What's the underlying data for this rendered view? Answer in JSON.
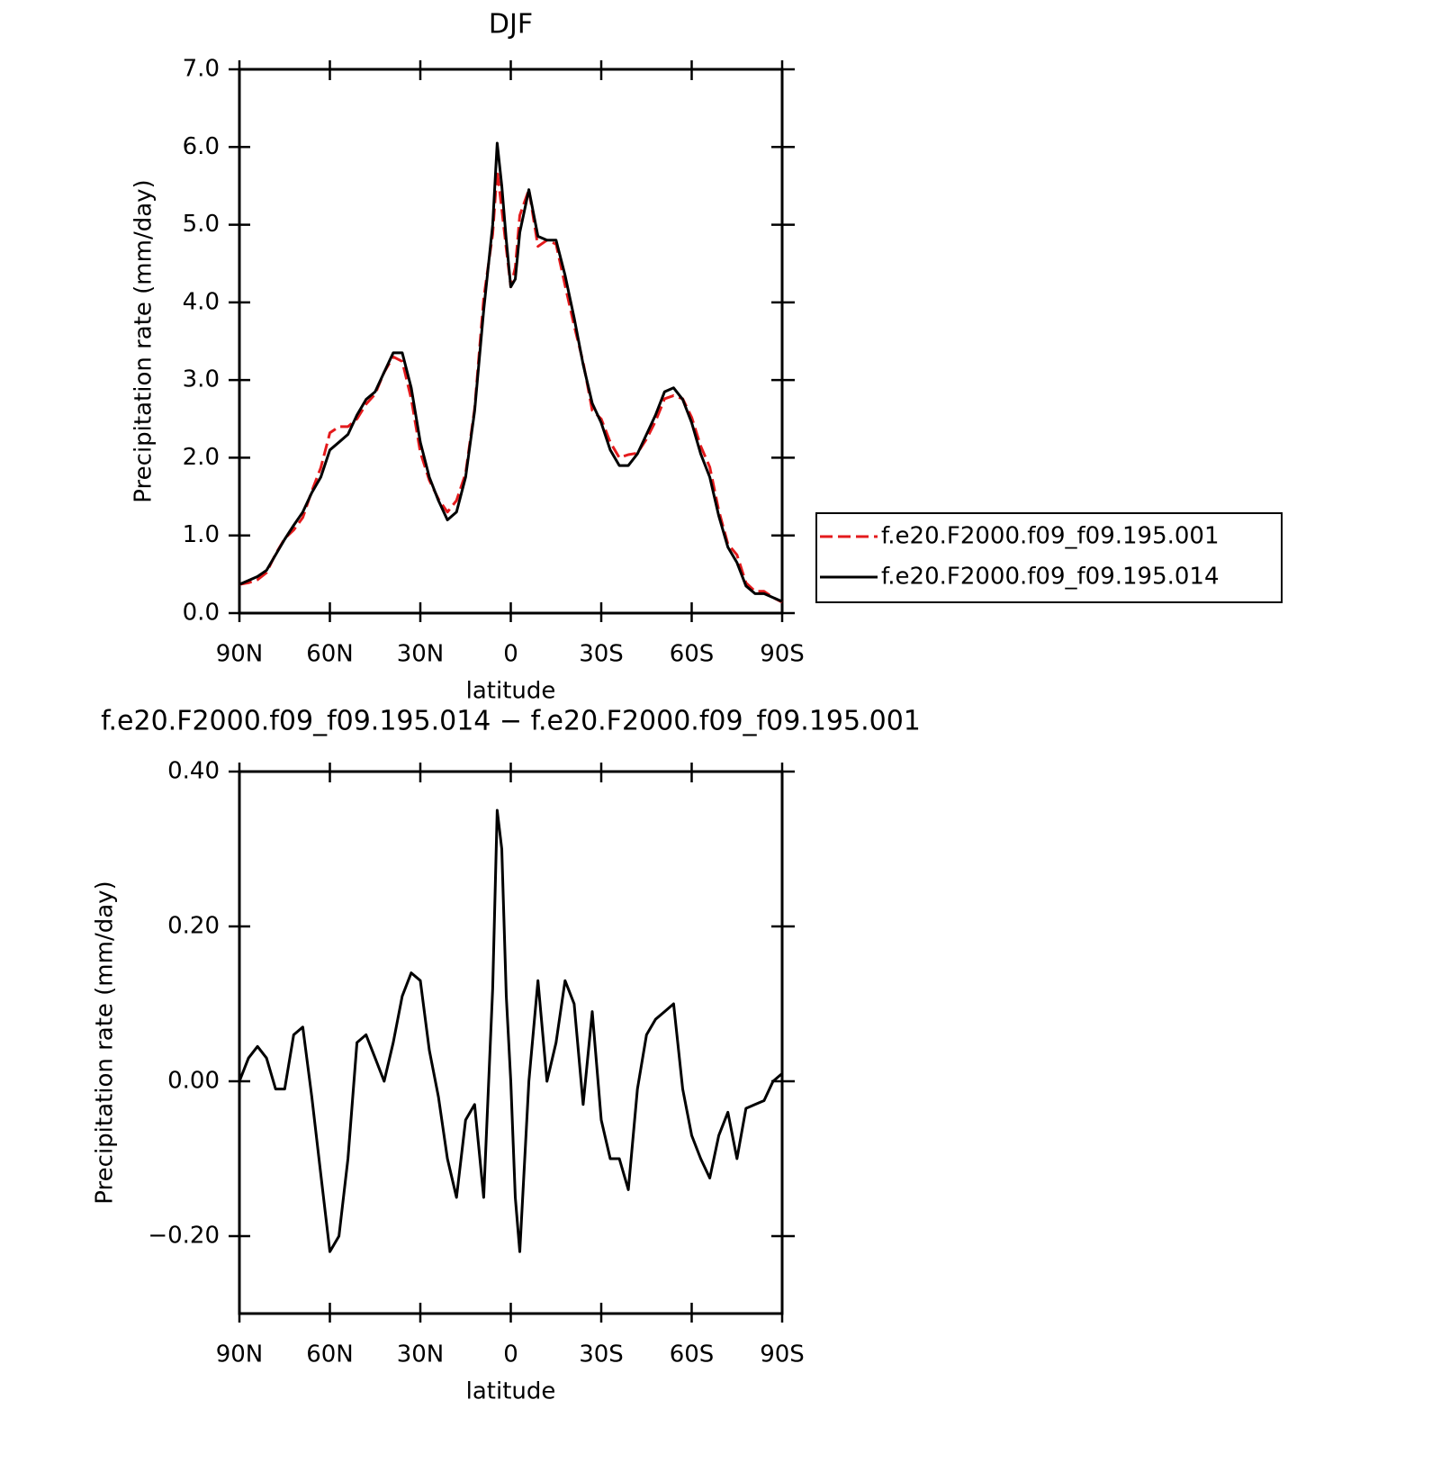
{
  "chart_data": [
    {
      "type": "line",
      "title": "DJF",
      "xlabel": "latitude",
      "ylabel": "Precipitation rate (mm/day)",
      "x": [
        90,
        87,
        84,
        81,
        78,
        75,
        72,
        69,
        66,
        63,
        60,
        57,
        54,
        51,
        48,
        45,
        42,
        39,
        36,
        33,
        30,
        27,
        24,
        21,
        18,
        15,
        12,
        9,
        6,
        4.5,
        3,
        1.5,
        0,
        -1.5,
        -3,
        -6,
        -9,
        -12,
        -15,
        -18,
        -21,
        -24,
        -27,
        -30,
        -33,
        -36,
        -39,
        -42,
        -45,
        -48,
        -51,
        -54,
        -57,
        -60,
        -63,
        -66,
        -69,
        -72,
        -75,
        -78,
        -81,
        -84,
        -87,
        -90
      ],
      "series": [
        {
          "name": "f.e20.F2000.f09_f09.195.001",
          "color": "#e41a1c",
          "dash": true,
          "values": [
            0.37,
            0.39,
            0.43,
            0.52,
            0.76,
            0.96,
            1.07,
            1.23,
            1.57,
            1.87,
            2.32,
            2.4,
            2.4,
            2.5,
            2.69,
            2.82,
            3.1,
            3.3,
            3.24,
            2.76,
            2.07,
            1.71,
            1.47,
            1.3,
            1.45,
            1.8,
            2.63,
            4.05,
            4.88,
            5.7,
            5.2,
            4.69,
            4.2,
            4.45,
            5.12,
            5.45,
            4.72,
            4.8,
            4.75,
            4.22,
            3.7,
            3.23,
            2.61,
            2.5,
            2.2,
            2.0,
            2.04,
            2.06,
            2.24,
            2.47,
            2.76,
            2.8,
            2.76,
            2.52,
            2.15,
            1.88,
            1.32,
            0.89,
            0.75,
            0.39,
            0.28,
            0.28,
            0.2,
            0.14
          ]
        },
        {
          "name": "f.e20.F2000.f09_f09.195.014",
          "color": "#000000",
          "dash": false,
          "values": [
            0.37,
            0.42,
            0.47,
            0.55,
            0.75,
            0.95,
            1.13,
            1.3,
            1.55,
            1.75,
            2.1,
            2.2,
            2.3,
            2.55,
            2.75,
            2.85,
            3.1,
            3.35,
            3.35,
            2.9,
            2.2,
            1.75,
            1.45,
            1.2,
            1.3,
            1.75,
            2.6,
            3.9,
            5.0,
            6.05,
            5.5,
            4.8,
            4.2,
            4.3,
            4.9,
            5.45,
            4.85,
            4.8,
            4.8,
            4.35,
            3.8,
            3.2,
            2.7,
            2.45,
            2.1,
            1.9,
            1.9,
            2.05,
            2.3,
            2.55,
            2.85,
            2.9,
            2.75,
            2.45,
            2.05,
            1.75,
            1.25,
            0.85,
            0.65,
            0.35,
            0.25,
            0.25,
            0.2,
            0.15
          ]
        }
      ],
      "xlim": [
        90,
        -90
      ],
      "xticks": [
        {
          "value": 90,
          "label": "90N"
        },
        {
          "value": 60,
          "label": "60N"
        },
        {
          "value": 30,
          "label": "30N"
        },
        0,
        {
          "value": -30,
          "label": "30S"
        },
        {
          "value": -60,
          "label": "60S"
        },
        {
          "value": -90,
          "label": "90S"
        }
      ],
      "ylim": [
        0,
        7
      ],
      "yticks": [
        {
          "value": 0,
          "label": "0.0"
        },
        {
          "value": 1,
          "label": "1.0"
        },
        {
          "value": 2,
          "label": "2.0"
        },
        {
          "value": 3,
          "label": "3.0"
        },
        {
          "value": 4,
          "label": "4.0"
        },
        {
          "value": 5,
          "label": "5.0"
        },
        {
          "value": 6,
          "label": "6.0"
        },
        {
          "value": 7,
          "label": "7.0"
        }
      ],
      "legend": "right"
    },
    {
      "type": "line",
      "title": "f.e20.F2000.f09_f09.195.014 − f.e20.F2000.f09_f09.195.001",
      "xlabel": "latitude",
      "ylabel": "Precipitation rate (mm/day)",
      "x": [
        90,
        87,
        84,
        81,
        78,
        75,
        72,
        69,
        66,
        63,
        60,
        57,
        54,
        51,
        48,
        45,
        42,
        39,
        36,
        33,
        30,
        27,
        24,
        21,
        18,
        15,
        12,
        9,
        6,
        4.5,
        3,
        1.5,
        0,
        -1.5,
        -3,
        -6,
        -9,
        -12,
        -15,
        -18,
        -21,
        -24,
        -27,
        -30,
        -33,
        -36,
        -39,
        -42,
        -45,
        -48,
        -51,
        -54,
        -57,
        -60,
        -63,
        -66,
        -69,
        -72,
        -75,
        -78,
        -81,
        -84,
        -87,
        -90
      ],
      "series": [
        {
          "color": "#000000",
          "dash": false,
          "values": [
            0.0,
            0.03,
            0.045,
            0.03,
            -0.01,
            -0.01,
            0.06,
            0.07,
            -0.02,
            -0.12,
            -0.22,
            -0.2,
            -0.1,
            0.05,
            0.06,
            0.03,
            0.0,
            0.05,
            0.11,
            0.14,
            0.13,
            0.04,
            -0.02,
            -0.1,
            -0.15,
            -0.05,
            -0.03,
            -0.15,
            0.12,
            0.35,
            0.3,
            0.11,
            0.0,
            -0.15,
            -0.22,
            0.0,
            0.13,
            0.0,
            0.05,
            0.13,
            0.1,
            -0.03,
            0.09,
            -0.05,
            -0.1,
            -0.1,
            -0.14,
            -0.01,
            0.06,
            0.08,
            0.09,
            0.1,
            -0.01,
            -0.07,
            -0.1,
            -0.125,
            -0.07,
            -0.04,
            -0.1,
            -0.035,
            -0.03,
            -0.025,
            0.0,
            0.01
          ]
        }
      ],
      "xlim": [
        90,
        -90
      ],
      "xticks": [
        {
          "value": 90,
          "label": "90N"
        },
        {
          "value": 60,
          "label": "60N"
        },
        {
          "value": 30,
          "label": "30N"
        },
        0,
        {
          "value": -30,
          "label": "30S"
        },
        {
          "value": -60,
          "label": "60S"
        },
        {
          "value": -90,
          "label": "90S"
        }
      ],
      "ylim": [
        -0.3,
        0.4
      ],
      "yticks": [
        {
          "value": -0.2,
          "label": "−0.20"
        },
        {
          "value": 0,
          "label": "0.00"
        },
        {
          "value": 0.2,
          "label": "0.20"
        },
        {
          "value": 0.4,
          "label": "0.40"
        }
      ]
    }
  ]
}
